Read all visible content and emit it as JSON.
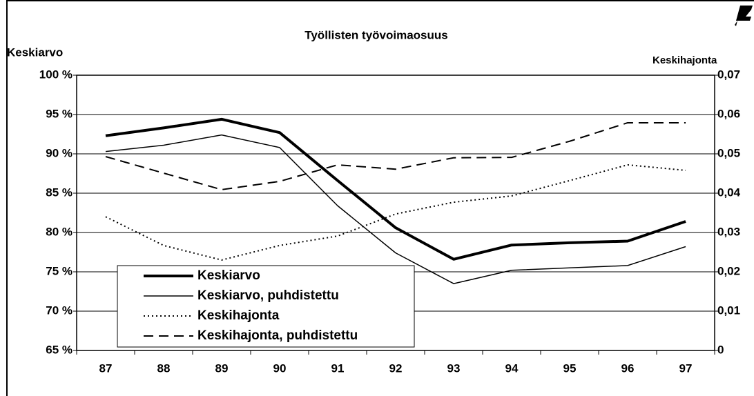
{
  "chart_data": {
    "type": "line",
    "title": "Työllisten työvoimaosuus",
    "ylabel": "Keskiarvo",
    "y2label": "Keskihajonta",
    "categories": [
      "87",
      "88",
      "89",
      "90",
      "91",
      "92",
      "93",
      "94",
      "95",
      "96",
      "97"
    ],
    "ylim": [
      65,
      100
    ],
    "yticks": [
      {
        "value": 65,
        "label": "65 %"
      },
      {
        "value": 70,
        "label": "70 %"
      },
      {
        "value": 75,
        "label": "75 %"
      },
      {
        "value": 80,
        "label": "80 %"
      },
      {
        "value": 85,
        "label": "85 %"
      },
      {
        "value": 90,
        "label": "90 %"
      },
      {
        "value": 95,
        "label": "95 %"
      },
      {
        "value": 100,
        "label": "100 %"
      }
    ],
    "y2lim": [
      0,
      0.07
    ],
    "y2ticks": [
      0,
      {
        "value": 0.01,
        "label": "0,01"
      },
      {
        "value": 0.02,
        "label": "0,02"
      },
      {
        "value": 0.03,
        "label": "0,03"
      },
      {
        "value": 0.04,
        "label": "0,04"
      },
      {
        "value": 0.05,
        "label": "0,05"
      },
      {
        "value": 0.06,
        "label": "0,06"
      },
      {
        "value": 0.07,
        "label": "0,07"
      }
    ],
    "grid": true,
    "legend": "lower left",
    "series": [
      {
        "name": "Keskiarvo",
        "color": "#000000",
        "style": "thick",
        "values": [
          92.3,
          93.3,
          94.4,
          92.7,
          86.6,
          80.6,
          76.6,
          78.4,
          78.7,
          78.9,
          81.4
        ]
      },
      {
        "name": "Keskiarvo, puhdistettu",
        "color": "#000000",
        "style": "thin",
        "values": [
          90.3,
          91.1,
          92.4,
          90.8,
          83.4,
          77.4,
          73.5,
          75.2,
          75.5,
          75.8,
          78.2
        ]
      },
      {
        "name": "Keskihajonta",
        "color": "#000000",
        "style": "dotted",
        "axis": "y2",
        "values": [
          0.034,
          0.0267,
          0.023,
          0.0267,
          0.0291,
          0.0347,
          0.0377,
          0.0393,
          0.0432,
          0.0472,
          0.0458
        ]
      },
      {
        "name": "Keskihajonta, puhdistettu",
        "color": "#000000",
        "style": "dashed",
        "axis": "y2",
        "values": [
          0.0493,
          0.0451,
          0.0409,
          0.043,
          0.0472,
          0.0461,
          0.049,
          0.0491,
          0.0532,
          0.0579,
          0.0579
        ]
      }
    ]
  }
}
